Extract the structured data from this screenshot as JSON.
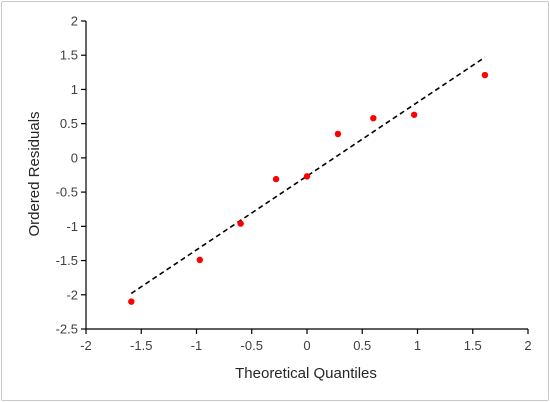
{
  "chart_data": {
    "type": "scatter",
    "title": "",
    "xlabel": "Theoretical Quantiles",
    "ylabel": "Ordered Residuals",
    "xlim": [
      -2,
      2
    ],
    "ylim": [
      -2.5,
      2
    ],
    "x_ticks": [
      -2,
      -1.5,
      -1,
      -0.5,
      0,
      0.5,
      1,
      1.5,
      2
    ],
    "y_ticks": [
      -2.5,
      -2,
      -1.5,
      -1,
      -0.5,
      0,
      0.5,
      1,
      1.5,
      2
    ],
    "x_tick_labels": [
      "-2",
      "-1.5",
      "-1",
      "-0.5",
      "0",
      "0.5",
      "1",
      "1.5",
      "2"
    ],
    "y_tick_labels": [
      "-2.5",
      "-2",
      "-1.5",
      "-1",
      "-0.5",
      "0",
      "0.5",
      "1",
      "1.5",
      "2"
    ],
    "grid": false,
    "legend": "none",
    "marker_color": "#ff0000",
    "points": [
      {
        "x": -1.59,
        "y": -2.1
      },
      {
        "x": -0.97,
        "y": -1.49
      },
      {
        "x": -0.6,
        "y": -0.96
      },
      {
        "x": -0.28,
        "y": -0.31
      },
      {
        "x": 0.0,
        "y": -0.27
      },
      {
        "x": 0.28,
        "y": 0.35
      },
      {
        "x": 0.6,
        "y": 0.58
      },
      {
        "x": 0.97,
        "y": 0.63
      },
      {
        "x": 1.61,
        "y": 1.21
      }
    ],
    "reference_line": {
      "style": "dashed",
      "color": "#000000",
      "from": {
        "x": -1.59,
        "y": -1.98
      },
      "to": {
        "x": 1.61,
        "y": 1.47
      }
    }
  }
}
